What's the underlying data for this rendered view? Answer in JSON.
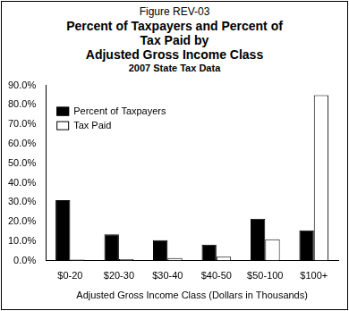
{
  "chart_data": {
    "type": "bar",
    "annotations": [
      "Figure REV-03"
    ],
    "title": [
      "Percent of Taxpayers and Percent of",
      "Tax Paid by",
      "Adjusted Gross Income Class"
    ],
    "subtitle": "2007 State Tax Data",
    "x_label": "Adjusted Gross Income Class (Dollars in Thousands)",
    "categories": [
      "$0-20",
      "$20-30",
      "$30-40",
      "$40-50",
      "$50-100",
      "$100+"
    ],
    "series": [
      {
        "name": "Percent of Taxpayers",
        "color": "#000000",
        "values": [
          31.0,
          13.5,
          10.5,
          8.2,
          21.5,
          15.5
        ]
      },
      {
        "name": "Tax Paid",
        "color": "#ffffff",
        "values": [
          0.5,
          0.7,
          1.3,
          2.0,
          11.0,
          85.0
        ]
      }
    ],
    "ylim": [
      0,
      90
    ],
    "yticks": [
      {
        "value": 0,
        "label": "0.0%"
      },
      {
        "value": 10,
        "label": "10.0%"
      },
      {
        "value": 20,
        "label": "20.0%"
      },
      {
        "value": 30,
        "label": "30.0%"
      },
      {
        "value": 40,
        "label": "40.0%"
      },
      {
        "value": 50,
        "label": "50.0%"
      },
      {
        "value": 60,
        "label": "60.0%"
      },
      {
        "value": 70,
        "label": "70.0%"
      },
      {
        "value": 80,
        "label": "80.0%"
      },
      {
        "value": 90,
        "label": "90.0%"
      }
    ],
    "grid": false,
    "legend": "upper left"
  }
}
